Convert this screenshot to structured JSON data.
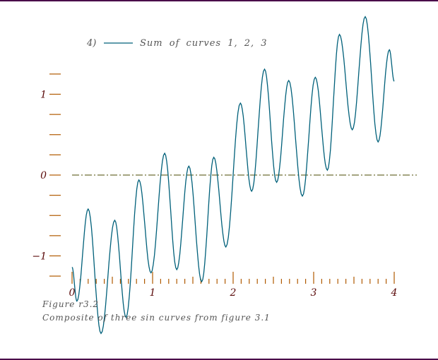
{
  "chart_data": {
    "type": "line",
    "title": "",
    "xlabel": "",
    "ylabel": "",
    "xlim": [
      0,
      4
    ],
    "ylim": [
      -1.25,
      1.25
    ],
    "x_tick_labels": [
      "0",
      "1",
      "2",
      "3",
      "4"
    ],
    "x_ticks": [
      0,
      1,
      2,
      3,
      4
    ],
    "x_minor_step": 0.1,
    "y_tick_labels": [
      "1",
      "0",
      "−1"
    ],
    "y_ticks": [
      1,
      0,
      -1
    ],
    "y_minor_step": 0.25,
    "zero_line": true,
    "legend": {
      "placement": "top-left",
      "entries": [
        {
          "marker": "4)",
          "label": "Sum of curves 1, 2, 3"
        }
      ]
    },
    "series": [
      {
        "name": "Sum of curves 1, 2, 3",
        "color": "#00607a",
        "points_note": "extrema",
        "x": [
          0,
          0.06,
          0.2,
          0.36,
          0.53,
          0.67,
          0.83,
          0.98,
          1.15,
          1.3,
          1.45,
          1.61,
          1.76,
          1.91,
          2.09,
          2.23,
          2.39,
          2.54,
          2.69,
          2.86,
          3.02,
          3.17,
          3.32,
          3.48,
          3.64,
          3.8,
          3.94,
          4.0
        ],
        "y": [
          -1.14,
          -1.56,
          -0.42,
          -1.96,
          -0.56,
          -1.76,
          -0.06,
          -1.21,
          0.27,
          -1.17,
          0.11,
          -1.32,
          0.22,
          -0.89,
          0.89,
          -0.2,
          1.31,
          -0.09,
          1.17,
          -0.26,
          1.21,
          0.06,
          1.74,
          0.56,
          1.96,
          0.41,
          1.55,
          1.16
        ]
      }
    ]
  },
  "captions": {
    "figure": "Figure r3.2",
    "description": "Composite of three sin curves from figure 3.1"
  },
  "colors": {
    "axis": "#b05a00",
    "label": "#5a0a0a",
    "zero": "#4a4a00",
    "curve": "#00607a",
    "border": "#4a0a4a"
  }
}
